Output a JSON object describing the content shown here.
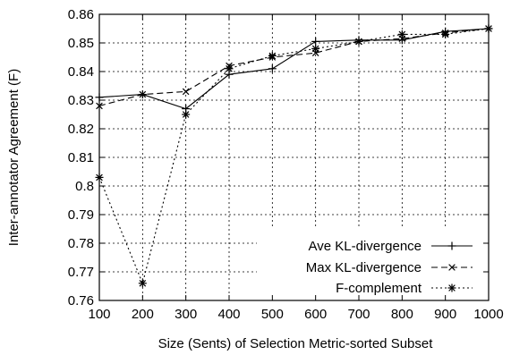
{
  "chart_data": {
    "type": "line",
    "title": "",
    "xlabel": "Size (Sents) of Selection Metric-sorted Subset",
    "ylabel": "Inter-annotator Agreement (F)",
    "xlim": [
      100,
      1000
    ],
    "ylim": [
      0.76,
      0.86
    ],
    "x_ticks": [
      100,
      200,
      300,
      400,
      500,
      600,
      700,
      800,
      900,
      1000
    ],
    "y_ticks": [
      0.76,
      0.77,
      0.78,
      0.79,
      0.8,
      0.81,
      0.82,
      0.83,
      0.84,
      0.85,
      0.86
    ],
    "x_tick_labels": [
      "100",
      "200",
      "300",
      "400",
      "500",
      "600",
      "700",
      "800",
      "900",
      "1000"
    ],
    "y_tick_labels": [
      "0.76",
      "0.77",
      "0.78",
      "0.79",
      "0.8",
      "0.81",
      "0.82",
      "0.83",
      "0.84",
      "0.85",
      "0.86"
    ],
    "grid": "dotted",
    "legend_position": "bottom-right",
    "x": [
      100,
      200,
      300,
      400,
      500,
      600,
      700,
      800,
      900,
      1000
    ],
    "series": [
      {
        "name": "Ave KL-divergence",
        "line_style": "solid",
        "marker": "plus",
        "values": [
          0.831,
          0.832,
          0.827,
          0.839,
          0.841,
          0.8505,
          0.851,
          0.851,
          0.854,
          0.855
        ]
      },
      {
        "name": "Max KL-divergence",
        "line_style": "dashed",
        "marker": "cross",
        "values": [
          0.828,
          0.832,
          0.833,
          0.842,
          0.845,
          0.8465,
          0.8505,
          0.8515,
          0.8535,
          0.855
        ]
      },
      {
        "name": "F-complement",
        "line_style": "dotted",
        "marker": "star",
        "values": [
          0.803,
          0.766,
          0.825,
          0.841,
          0.8455,
          0.848,
          0.8505,
          0.853,
          0.853,
          0.855
        ]
      }
    ]
  }
}
